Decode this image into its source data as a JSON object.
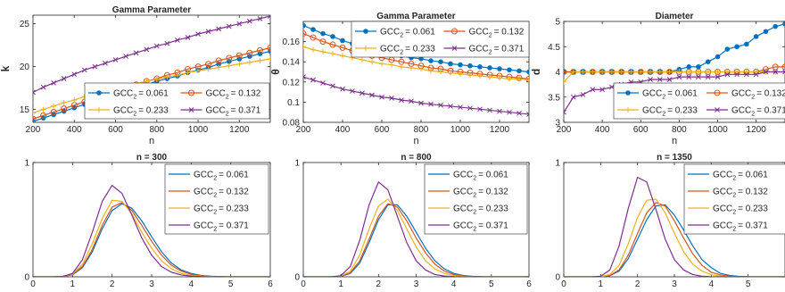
{
  "colors": {
    "s1": "#0072BD",
    "s2": "#D95319",
    "s3": "#EDB120",
    "s4": "#7E2F8E"
  },
  "chart_data": [
    {
      "type": "line",
      "title": "Gamma Parameter",
      "xlabel": "n",
      "ylabel": "k",
      "xlim": [
        200,
        1350
      ],
      "ylim": [
        13.5,
        26
      ],
      "xticks": [
        200,
        400,
        600,
        800,
        1000,
        1200
      ],
      "yticks": [
        15,
        20,
        25
      ],
      "legend": "bottom-right",
      "x": [
        200,
        250,
        300,
        350,
        400,
        450,
        500,
        550,
        600,
        650,
        700,
        750,
        800,
        850,
        900,
        950,
        1000,
        1050,
        1100,
        1150,
        1200,
        1250,
        1300,
        1350
      ],
      "series": [
        {
          "name": "GCC2 = 0.061",
          "legend_label": "GCC",
          "legend_sub": "2",
          "legend_value": "= 0.061",
          "marker": "dot",
          "values": [
            13.6,
            14.0,
            14.4,
            14.8,
            15.2,
            15.6,
            16.0,
            16.4,
            16.8,
            17.2,
            17.6,
            17.9,
            18.3,
            18.6,
            18.9,
            19.3,
            19.6,
            19.9,
            20.3,
            20.6,
            20.9,
            21.2,
            21.5,
            21.8
          ]
        },
        {
          "name": "GCC2 = 0.132",
          "legend_label": "GCC",
          "legend_sub": "2",
          "legend_value": "= 0.132",
          "marker": "circle",
          "values": [
            13.9,
            14.3,
            14.7,
            15.1,
            15.5,
            15.9,
            16.3,
            16.7,
            17.1,
            17.5,
            17.9,
            18.3,
            18.6,
            19.0,
            19.3,
            19.7,
            20.0,
            20.3,
            20.7,
            21.0,
            21.3,
            21.6,
            21.9,
            22.2
          ]
        },
        {
          "name": "GCC2 = 0.233",
          "legend_label": "GCC",
          "legend_sub": "2",
          "legend_value": "= 0.233",
          "marker": "plus",
          "values": [
            14.6,
            15.0,
            15.4,
            15.8,
            16.1,
            16.5,
            16.8,
            17.1,
            17.4,
            17.7,
            18.0,
            18.3,
            18.5,
            18.8,
            19.0,
            19.3,
            19.5,
            19.7,
            19.9,
            20.1,
            20.3,
            20.5,
            20.7,
            20.9
          ]
        },
        {
          "name": "GCC2 = 0.371",
          "legend_label": "GCC",
          "legend_sub": "2",
          "legend_value": "= 0.371",
          "marker": "cross",
          "values": [
            17.0,
            17.6,
            18.1,
            18.6,
            19.1,
            19.6,
            20.0,
            20.4,
            20.8,
            21.2,
            21.6,
            22.0,
            22.4,
            22.7,
            23.1,
            23.4,
            23.8,
            24.1,
            24.4,
            24.7,
            25.0,
            25.3,
            25.6,
            25.9
          ]
        }
      ]
    },
    {
      "type": "line",
      "title": "Gamma Parameter",
      "xlabel": "n",
      "ylabel": "θ",
      "xlim": [
        200,
        1350
      ],
      "ylim": [
        0.08,
        0.18
      ],
      "xticks": [
        200,
        400,
        600,
        800,
        1000,
        1200
      ],
      "yticks": [
        0.08,
        0.1,
        0.12,
        0.14,
        0.16
      ],
      "ytick_labels": [
        "0.08",
        "0.1",
        "0.12",
        "0.14",
        "0.16"
      ],
      "legend": "top-right",
      "x": [
        200,
        250,
        300,
        350,
        400,
        450,
        500,
        550,
        600,
        650,
        700,
        750,
        800,
        850,
        900,
        950,
        1000,
        1050,
        1100,
        1150,
        1200,
        1250,
        1300,
        1350
      ],
      "series": [
        {
          "name": "GCC2 = 0.061",
          "legend_label": "GCC",
          "legend_sub": "2",
          "legend_value": "= 0.061",
          "marker": "dot",
          "values": [
            0.176,
            0.172,
            0.168,
            0.165,
            0.161,
            0.158,
            0.155,
            0.153,
            0.15,
            0.148,
            0.146,
            0.144,
            0.143,
            0.141,
            0.14,
            0.138,
            0.137,
            0.136,
            0.135,
            0.134,
            0.133,
            0.132,
            0.131,
            0.13
          ]
        },
        {
          "name": "GCC2 = 0.132",
          "legend_label": "GCC",
          "legend_sub": "2",
          "legend_value": "= 0.132",
          "marker": "circle",
          "values": [
            0.168,
            0.164,
            0.16,
            0.157,
            0.154,
            0.151,
            0.148,
            0.146,
            0.144,
            0.142,
            0.14,
            0.138,
            0.136,
            0.134,
            0.133,
            0.131,
            0.13,
            0.129,
            0.128,
            0.127,
            0.126,
            0.125,
            0.124,
            0.123
          ]
        },
        {
          "name": "GCC2 = 0.233",
          "legend_label": "GCC",
          "legend_sub": "2",
          "legend_value": "= 0.233",
          "marker": "plus",
          "values": [
            0.155,
            0.152,
            0.15,
            0.148,
            0.146,
            0.144,
            0.142,
            0.14,
            0.138,
            0.137,
            0.135,
            0.134,
            0.133,
            0.131,
            0.13,
            0.129,
            0.128,
            0.127,
            0.126,
            0.125,
            0.124,
            0.123,
            0.123,
            0.122
          ]
        },
        {
          "name": "GCC2 = 0.371",
          "legend_label": "GCC",
          "legend_sub": "2",
          "legend_value": "= 0.371",
          "marker": "cross",
          "values": [
            0.125,
            0.122,
            0.119,
            0.116,
            0.113,
            0.111,
            0.109,
            0.107,
            0.105,
            0.104,
            0.102,
            0.101,
            0.099,
            0.098,
            0.097,
            0.096,
            0.095,
            0.094,
            0.093,
            0.092,
            0.091,
            0.09,
            0.089,
            0.088
          ]
        }
      ]
    },
    {
      "type": "line",
      "title": "Diameter",
      "xlabel": "n",
      "ylabel": "d",
      "xlim": [
        200,
        1350
      ],
      "ylim": [
        3,
        5
      ],
      "xticks": [
        200,
        400,
        600,
        800,
        1000,
        1200
      ],
      "yticks": [
        3,
        3.5,
        4,
        4.5,
        5
      ],
      "legend": "bottom-right",
      "x": [
        200,
        250,
        300,
        350,
        400,
        450,
        500,
        550,
        600,
        650,
        700,
        750,
        800,
        850,
        900,
        950,
        1000,
        1050,
        1100,
        1150,
        1200,
        1250,
        1300,
        1350
      ],
      "series": [
        {
          "name": "GCC2 = 0.061",
          "legend_label": "GCC",
          "legend_sub": "2",
          "legend_value": "= 0.061",
          "marker": "dot",
          "values": [
            4,
            4,
            4,
            4,
            4,
            4,
            4,
            4,
            4,
            4,
            4,
            4,
            4.05,
            4.1,
            4.1,
            4.2,
            4.3,
            4.45,
            4.5,
            4.55,
            4.7,
            4.8,
            4.9,
            4.95
          ]
        },
        {
          "name": "GCC2 = 0.132",
          "legend_label": "GCC",
          "legend_sub": "2",
          "legend_value": "= 0.132",
          "marker": "circle",
          "values": [
            4,
            4,
            4,
            4,
            4,
            4,
            4,
            4,
            4,
            4,
            4,
            4,
            4,
            4,
            4,
            4,
            4,
            4,
            4,
            4,
            4,
            4.05,
            4.1,
            4.1
          ]
        },
        {
          "name": "GCC2 = 0.233",
          "legend_label": "GCC",
          "legend_sub": "2",
          "legend_value": "= 0.233",
          "marker": "plus",
          "values": [
            3.8,
            4,
            4,
            4,
            4,
            4,
            4,
            4,
            4,
            4,
            4,
            4,
            4,
            4,
            4,
            4,
            4,
            4,
            4,
            4,
            4,
            4,
            4,
            4
          ]
        },
        {
          "name": "GCC2 = 0.371",
          "legend_label": "GCC",
          "legend_sub": "2",
          "legend_value": "= 0.371",
          "marker": "cross",
          "values": [
            3.2,
            3.5,
            3.55,
            3.65,
            3.65,
            3.7,
            3.75,
            3.8,
            3.8,
            3.85,
            3.85,
            3.85,
            3.9,
            3.9,
            3.9,
            3.9,
            3.9,
            3.95,
            3.95,
            3.95,
            3.95,
            4,
            4,
            4
          ]
        }
      ]
    },
    {
      "type": "line",
      "title": "n = 300",
      "xlabel": "",
      "ylabel": "",
      "xlim": [
        0,
        6
      ],
      "ylim": [
        0,
        1
      ],
      "xticks": [
        0,
        1,
        2,
        3,
        4,
        5,
        6
      ],
      "yticks": [
        0,
        1
      ],
      "legend": "top-right",
      "x": [
        0,
        0.25,
        0.5,
        0.75,
        1,
        1.25,
        1.5,
        1.75,
        2,
        2.25,
        2.5,
        2.75,
        3,
        3.25,
        3.5,
        3.75,
        4,
        4.25,
        4.5,
        4.75,
        5,
        5.25,
        5.5,
        5.75,
        6
      ],
      "series": [
        {
          "name": "GCC2 = 0.061",
          "legend_label": "GCC",
          "legend_sub": "2",
          "legend_value": "= 0.061",
          "values": [
            0,
            0,
            0,
            0.002,
            0.018,
            0.08,
            0.22,
            0.42,
            0.58,
            0.64,
            0.6,
            0.49,
            0.35,
            0.22,
            0.12,
            0.06,
            0.03,
            0.012,
            0.005,
            0.002,
            0,
            0,
            0,
            0,
            0
          ]
        },
        {
          "name": "GCC2 = 0.132",
          "legend_label": "GCC",
          "legend_sub": "2",
          "legend_value": "= 0.132",
          "values": [
            0,
            0,
            0,
            0.002,
            0.02,
            0.09,
            0.24,
            0.45,
            0.61,
            0.65,
            0.58,
            0.45,
            0.31,
            0.19,
            0.1,
            0.05,
            0.022,
            0.009,
            0.003,
            0.001,
            0,
            0,
            0,
            0,
            0
          ]
        },
        {
          "name": "GCC2 = 0.233",
          "legend_label": "GCC",
          "legend_sub": "2",
          "legend_value": "= 0.233",
          "values": [
            0,
            0,
            0,
            0.003,
            0.025,
            0.11,
            0.29,
            0.51,
            0.67,
            0.66,
            0.55,
            0.39,
            0.25,
            0.14,
            0.07,
            0.03,
            0.013,
            0.005,
            0.002,
            0,
            0,
            0,
            0,
            0,
            0
          ]
        },
        {
          "name": "GCC2 = 0.371",
          "legend_label": "GCC",
          "legend_sub": "2",
          "legend_value": "= 0.371",
          "values": [
            0,
            0,
            0,
            0.003,
            0.03,
            0.15,
            0.39,
            0.66,
            0.8,
            0.73,
            0.54,
            0.34,
            0.19,
            0.09,
            0.04,
            0.016,
            0.006,
            0.002,
            0,
            0,
            0,
            0,
            0,
            0,
            0
          ]
        }
      ]
    },
    {
      "type": "line",
      "title": "n = 800",
      "xlabel": "",
      "ylabel": "",
      "xlim": [
        0,
        6
      ],
      "ylim": [
        0,
        1
      ],
      "xticks": [
        0,
        1,
        2,
        3,
        4,
        5,
        6
      ],
      "yticks": [
        0,
        1
      ],
      "legend": "top-right",
      "x": [
        0,
        0.25,
        0.5,
        0.75,
        1,
        1.25,
        1.5,
        1.75,
        2,
        2.25,
        2.5,
        2.75,
        3,
        3.25,
        3.5,
        3.75,
        4,
        4.25,
        4.5,
        4.75,
        5,
        5.25,
        5.5,
        5.75,
        6
      ],
      "series": [
        {
          "name": "GCC2 = 0.061",
          "legend_label": "GCC",
          "legend_sub": "2",
          "legend_value": "= 0.061",
          "values": [
            0,
            0,
            0,
            0,
            0.004,
            0.03,
            0.12,
            0.3,
            0.5,
            0.63,
            0.63,
            0.53,
            0.39,
            0.25,
            0.14,
            0.07,
            0.03,
            0.012,
            0.004,
            0.001,
            0,
            0,
            0,
            0,
            0
          ]
        },
        {
          "name": "GCC2 = 0.132",
          "legend_label": "GCC",
          "legend_sub": "2",
          "legend_value": "= 0.132",
          "values": [
            0,
            0,
            0,
            0,
            0.005,
            0.035,
            0.14,
            0.33,
            0.53,
            0.64,
            0.61,
            0.49,
            0.34,
            0.21,
            0.11,
            0.05,
            0.02,
            0.008,
            0.003,
            0,
            0,
            0,
            0,
            0,
            0
          ]
        },
        {
          "name": "GCC2 = 0.233",
          "legend_label": "GCC",
          "legend_sub": "2",
          "legend_value": "= 0.233",
          "values": [
            0,
            0,
            0,
            0,
            0.007,
            0.05,
            0.19,
            0.42,
            0.62,
            0.68,
            0.58,
            0.42,
            0.26,
            0.14,
            0.07,
            0.03,
            0.011,
            0.004,
            0.001,
            0,
            0,
            0,
            0,
            0,
            0
          ]
        },
        {
          "name": "GCC2 = 0.371",
          "legend_label": "GCC",
          "legend_sub": "2",
          "legend_value": "= 0.371",
          "values": [
            0,
            0,
            0,
            0,
            0.01,
            0.09,
            0.32,
            0.63,
            0.83,
            0.76,
            0.53,
            0.3,
            0.14,
            0.06,
            0.02,
            0.007,
            0.002,
            0,
            0,
            0,
            0,
            0,
            0,
            0,
            0
          ]
        }
      ]
    },
    {
      "type": "line",
      "title": "n = 1350",
      "xlabel": "",
      "ylabel": "",
      "xlim": [
        0,
        6
      ],
      "ylim": [
        0,
        1
      ],
      "xticks": [
        0,
        1,
        2,
        3,
        4,
        5
      ],
      "yticks": [
        0,
        1
      ],
      "legend": "top-right",
      "x": [
        0,
        0.25,
        0.5,
        0.75,
        1,
        1.25,
        1.5,
        1.75,
        2,
        2.25,
        2.5,
        2.75,
        3,
        3.25,
        3.5,
        3.75,
        4,
        4.25,
        4.5,
        4.75,
        5,
        5.25,
        5.5,
        5.75,
        6
      ],
      "series": [
        {
          "name": "GCC2 = 0.061",
          "legend_label": "GCC",
          "legend_sub": "2",
          "legend_value": "= 0.061",
          "values": [
            0,
            0,
            0,
            0,
            0.001,
            0.01,
            0.05,
            0.16,
            0.33,
            0.5,
            0.62,
            0.63,
            0.54,
            0.41,
            0.27,
            0.15,
            0.08,
            0.03,
            0.012,
            0.004,
            0.001,
            0,
            0,
            0,
            0
          ]
        },
        {
          "name": "GCC2 = 0.132",
          "legend_label": "GCC",
          "legend_sub": "2",
          "legend_value": "= 0.132",
          "values": [
            0,
            0,
            0,
            0,
            0.001,
            0.012,
            0.06,
            0.19,
            0.38,
            0.56,
            0.65,
            0.62,
            0.49,
            0.34,
            0.2,
            0.1,
            0.04,
            0.016,
            0.005,
            0.001,
            0,
            0,
            0,
            0,
            0
          ]
        },
        {
          "name": "GCC2 = 0.233",
          "legend_label": "GCC",
          "legend_sub": "2",
          "legend_value": "= 0.233",
          "values": [
            0,
            0,
            0,
            0,
            0.002,
            0.02,
            0.1,
            0.29,
            0.52,
            0.67,
            0.68,
            0.56,
            0.38,
            0.22,
            0.11,
            0.05,
            0.018,
            0.006,
            0.002,
            0,
            0,
            0,
            0,
            0,
            0
          ]
        },
        {
          "name": "GCC2 = 0.371",
          "legend_label": "GCC",
          "legend_sub": "2",
          "legend_value": "= 0.371",
          "values": [
            0,
            0,
            0,
            0,
            0.005,
            0.06,
            0.27,
            0.6,
            0.87,
            0.83,
            0.59,
            0.33,
            0.15,
            0.06,
            0.02,
            0.005,
            0.001,
            0,
            0,
            0,
            0,
            0,
            0,
            0,
            0
          ]
        }
      ]
    }
  ]
}
